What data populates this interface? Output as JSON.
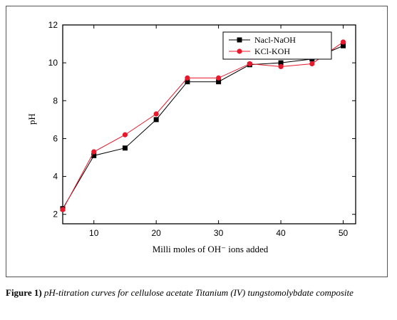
{
  "chart_data": {
    "type": "line",
    "xlabel": "Milli moles of OH⁻ ions added",
    "ylabel": "pH",
    "xlim": [
      5,
      52
    ],
    "ylim": [
      1.5,
      12
    ],
    "xticks": [
      10,
      20,
      30,
      40,
      50
    ],
    "yticks": [
      2,
      4,
      6,
      8,
      10,
      12
    ],
    "grid": false,
    "legend_position": "top-right",
    "series": [
      {
        "name": "Nacl-NaOH",
        "color": "#000000",
        "marker": "square",
        "x": [
          5,
          10,
          15,
          20,
          25,
          30,
          35,
          40,
          45,
          50
        ],
        "y": [
          2.3,
          5.1,
          5.5,
          7.0,
          9.0,
          9.0,
          9.9,
          10.0,
          10.2,
          10.9
        ]
      },
      {
        "name": "KCl-KOH",
        "color": "#e8192c",
        "marker": "circle",
        "x": [
          5,
          10,
          15,
          20,
          25,
          30,
          35,
          40,
          45,
          50
        ],
        "y": [
          2.25,
          5.3,
          6.2,
          7.3,
          9.2,
          9.2,
          9.95,
          9.8,
          9.95,
          11.1
        ]
      }
    ]
  },
  "caption": {
    "label": "Figure 1)",
    "text": "pH-titration curves for cellulose acetate Titanium (IV) tungstomolybdate composite"
  }
}
